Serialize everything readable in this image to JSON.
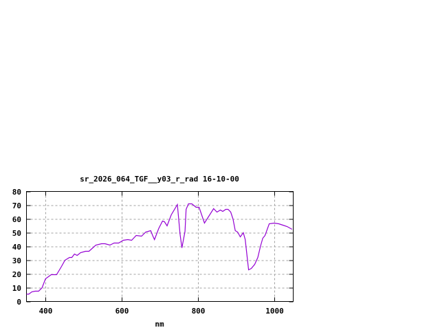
{
  "chart_data": {
    "type": "line",
    "title": "sr_2026_064_TGF__y03_r_rad 16-10-00",
    "xlabel": "nm",
    "ylabel": "",
    "xlim": [
      350,
      1050
    ],
    "ylim": [
      0,
      80
    ],
    "xticks": [
      400,
      600,
      800,
      1000
    ],
    "yticks": [
      0,
      10,
      20,
      30,
      40,
      50,
      60,
      70,
      80
    ],
    "grid": true,
    "line_color": "#9400d3",
    "series": [
      {
        "x": [
          350,
          356,
          364,
          373,
          382,
          391,
          400,
          415,
          429,
          442,
          451,
          463,
          469,
          476,
          483,
          492,
          505,
          514,
          532,
          547,
          556,
          569,
          580,
          592,
          604,
          616,
          626,
          638,
          652,
          663,
          676,
          681,
          686,
          697,
          707,
          712,
          719,
          730,
          746,
          753,
          758,
          766,
          769,
          775,
          784,
          795,
          803,
          817,
          841,
          850,
          859,
          865,
          873,
          879,
          886,
          892,
          898,
          904,
          911,
          919,
          924,
          928,
          933,
          940,
          949,
          957,
          964,
          970,
          976,
          987,
          1000,
          1012,
          1023,
          1034,
          1047
        ],
        "y": [
          5.3,
          5.3,
          7,
          7.5,
          7.5,
          10,
          16.5,
          19.5,
          19.5,
          25.5,
          30,
          32,
          32,
          34.5,
          33.5,
          35.5,
          36.5,
          36.5,
          41,
          42,
          42,
          41,
          42.5,
          42.5,
          44.5,
          45,
          44.5,
          48,
          47.5,
          50.5,
          51.5,
          48,
          45,
          53,
          58.5,
          58,
          55,
          63,
          70.5,
          49,
          39,
          51,
          67,
          71,
          71,
          68.5,
          68.5,
          57,
          67.5,
          65,
          66.5,
          65.5,
          67,
          67,
          65,
          60,
          51.5,
          50.5,
          47,
          50,
          45,
          35,
          23,
          24,
          27,
          32,
          40,
          46,
          48,
          56.5,
          57,
          56.5,
          55.5,
          54.5,
          52.5
        ]
      }
    ]
  }
}
